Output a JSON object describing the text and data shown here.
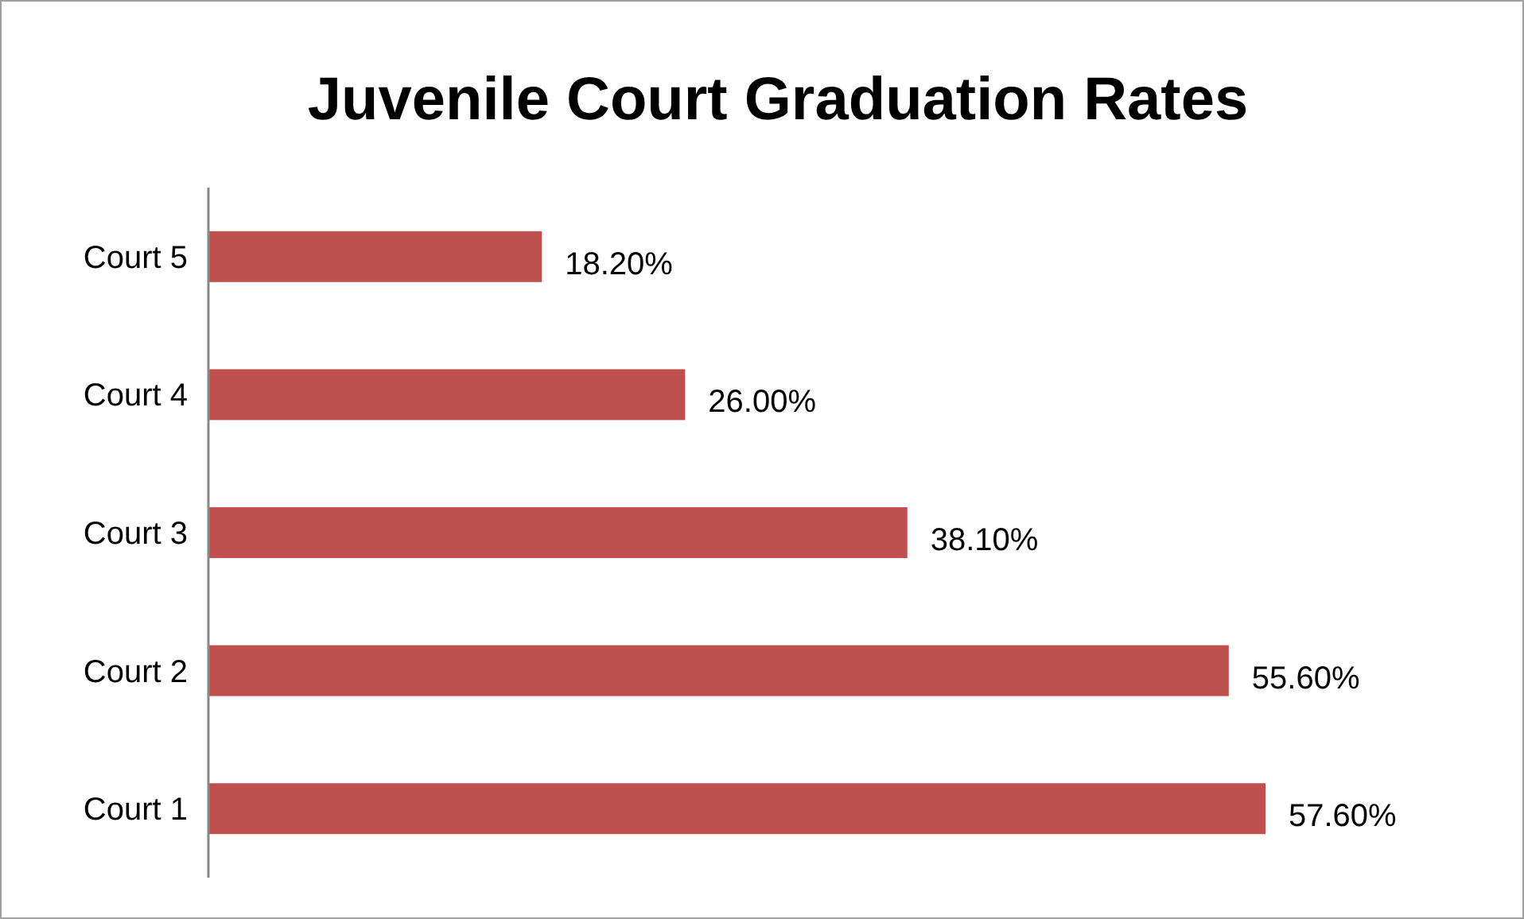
{
  "chart_data": {
    "type": "bar",
    "orientation": "horizontal",
    "title": "Juvenile Court Graduation Rates",
    "categories": [
      "Court 5",
      "Court 4",
      "Court 3",
      "Court 2",
      "Court 1"
    ],
    "values": [
      18.2,
      26.0,
      38.1,
      55.6,
      57.6
    ],
    "value_labels": [
      "18.20%",
      "26.00%",
      "38.10%",
      "55.60%",
      "57.60%"
    ],
    "color": "#c0504d",
    "tick_labels": "y"
  }
}
